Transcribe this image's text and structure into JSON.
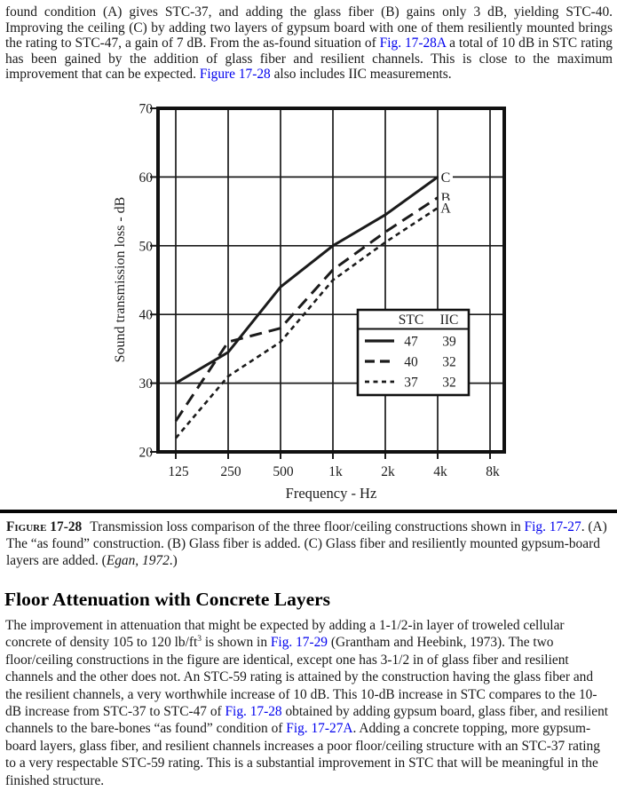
{
  "page": {
    "background": "#ffffff",
    "text_color": "#181818",
    "link_color": "#0000ee",
    "ink_color": "#1b1b1b"
  },
  "paragraphs": {
    "top": {
      "segments": [
        {
          "t": "found condition (A) gives STC-37, and adding the glass fiber (B) gains only 3 dB, yielding STC-40. Improving the ceiling (C) by adding two layers of gypsum board with one of them resiliently mounted brings the rating to STC-47, a gain of 7 dB. From the as-found situation of "
        },
        {
          "t": "Fig. 17-28A",
          "s": "link"
        },
        {
          "t": " a total of 10 dB in STC rating has been gained by the addition of glass fiber and resilient channels. This is close to the maximum improvement that can be expected. "
        },
        {
          "t": "Figure 17-28",
          "s": "link"
        },
        {
          "t": " also includes IIC measurements."
        }
      ]
    }
  },
  "figure": {
    "caption": {
      "segments": [
        {
          "t": "Figure 17-28",
          "s": "figlabel"
        },
        {
          "t": "Transmission loss comparison of the three floor/ceiling constructions shown in "
        },
        {
          "t": "Fig. 17-27",
          "s": "link"
        },
        {
          "t": ". (A) The “as found” construction. (B) Glass fiber is added. (C) Glass fiber and resiliently mounted gypsum-board layers are added. ("
        },
        {
          "t": "Egan, 1972",
          "s": "italic"
        },
        {
          "t": ".)"
        }
      ]
    }
  },
  "section": {
    "heading": "Floor Attenuation with Concrete Layers",
    "body": {
      "segments": [
        {
          "t": "The improvement in attenuation that might be expected by adding a 1-1/2-in layer of troweled cellular concrete of density 105 to 120 lb/ft"
        },
        {
          "t": "3",
          "s": "sup"
        },
        {
          "t": " is shown in "
        },
        {
          "t": "Fig. 17-29",
          "s": "link"
        },
        {
          "t": " (Grantham and Heebink, 1973). The two floor/ceiling constructions in the figure are identical, except one has 3-1/2 in of glass fiber and resilient channels and the other does not. An STC-59 rating is attained by the construction having the glass fiber and the resilient channels, a very worthwhile increase of 10 dB. This 10-dB increase in STC compares to the 10-dB increase from STC-37 to STC-47 of "
        },
        {
          "t": "Fig. 17-28",
          "s": "link"
        },
        {
          "t": " obtained by adding gypsum board, glass fiber, and resilient channels to the bare-bones “as found” condition of "
        },
        {
          "t": "Fig. 17-27A",
          "s": "link"
        },
        {
          "t": ". Adding a concrete topping, more gypsum-board layers, glass fiber, and resilient channels increases a poor floor/ceiling structure with an STC-37 rating to a very respectable STC-59 rating. This is a substantial improvement in STC that will be meaningful in the finished structure."
        }
      ]
    }
  },
  "chart_data": {
    "type": "line",
    "title": "",
    "xlabel": "Frequency - Hz",
    "ylabel": "Sound transmission loss - dB",
    "x_scale": "log-octave",
    "x_tick_labels": [
      "125",
      "250",
      "500",
      "1k",
      "2k",
      "4k",
      "8k"
    ],
    "x_tick_hz": [
      125,
      250,
      500,
      1000,
      2000,
      4000,
      8000
    ],
    "y_ticks": [
      20,
      30,
      40,
      50,
      60,
      70
    ],
    "ylim": [
      20,
      70
    ],
    "grid": true,
    "series": [
      {
        "label": "C",
        "line_style": "solid",
        "stc": "47",
        "iic": "39",
        "frequencies_hz": [
          125,
          250,
          500,
          1000,
          2000,
          4000
        ],
        "values_db": [
          30,
          34.5,
          44,
          50,
          54.5,
          60
        ]
      },
      {
        "label": "B",
        "line_style": "long-dash",
        "stc": "40",
        "iic": "32",
        "frequencies_hz": [
          125,
          250,
          500,
          1000,
          2000,
          4000
        ],
        "values_db": [
          24.5,
          36,
          38,
          46.5,
          52,
          57
        ]
      },
      {
        "label": "A",
        "line_style": "short-dash",
        "stc": "37",
        "iic": "32",
        "frequencies_hz": [
          125,
          250,
          500,
          1000,
          2000,
          4000
        ],
        "values_db": [
          22,
          31,
          36,
          45,
          50.5,
          55.5
        ]
      }
    ],
    "legend": {
      "columns": [
        "STC",
        "IIC"
      ],
      "position": "inside-lower-right"
    }
  }
}
